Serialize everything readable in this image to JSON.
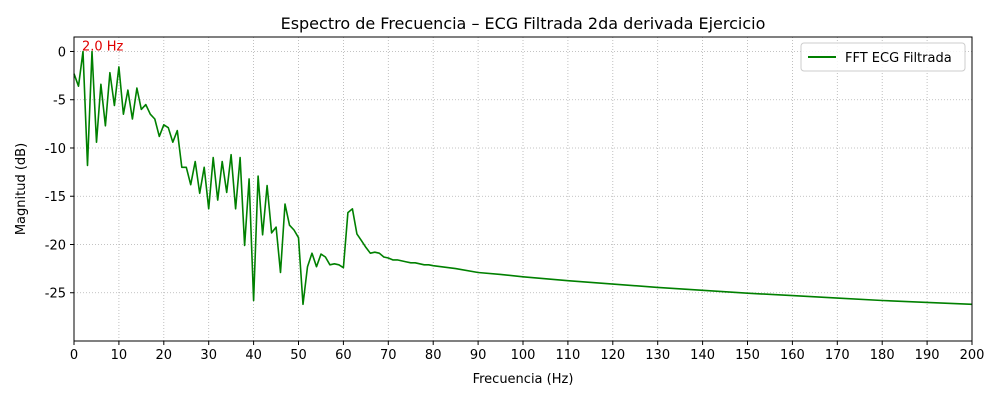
{
  "chart_data": {
    "type": "line",
    "title": "Espectro de Frecuencia – ECG Filtrada 2da derivada Ejercicio",
    "xlabel": "Frecuencia (Hz)",
    "ylabel": "Magnitud (dB)",
    "xlim": [
      0,
      200
    ],
    "ylim": [
      -30,
      1.5
    ],
    "xticks": [
      0,
      10,
      20,
      30,
      40,
      50,
      60,
      70,
      80,
      90,
      100,
      110,
      120,
      130,
      140,
      150,
      160,
      170,
      180,
      190,
      200
    ],
    "yticks": [
      0,
      -5,
      -10,
      -15,
      -20,
      -25
    ],
    "grid": true,
    "legend_position": "top-right",
    "annotation": {
      "text": "2.0 Hz",
      "x": 2.0,
      "y": 0,
      "color": "#e00000"
    },
    "series": [
      {
        "name": "FFT ECG Filtrada",
        "color": "#008000",
        "x": [
          0,
          1,
          2,
          3,
          4,
          5,
          6,
          7,
          8,
          9,
          10,
          11,
          12,
          13,
          14,
          15,
          16,
          17,
          18,
          19,
          20,
          21,
          22,
          23,
          24,
          25,
          26,
          27,
          28,
          29,
          30,
          31,
          32,
          33,
          34,
          35,
          36,
          37,
          38,
          39,
          40,
          41,
          42,
          43,
          44,
          45,
          46,
          47,
          48,
          49,
          50,
          51,
          52,
          53,
          54,
          55,
          56,
          57,
          58,
          59,
          60,
          61,
          62,
          63,
          64,
          65,
          66,
          67,
          68,
          69,
          70,
          71,
          72,
          73,
          74,
          75,
          76,
          77,
          78,
          79,
          80,
          85,
          90,
          95,
          100,
          110,
          120,
          130,
          140,
          150,
          160,
          170,
          180,
          190,
          200
        ],
        "y": [
          -2.3,
          -3.6,
          0,
          -11.8,
          0,
          -9.4,
          -3.4,
          -7.7,
          -2.2,
          -5.6,
          -1.6,
          -6.5,
          -4.0,
          -7.0,
          -3.8,
          -6.0,
          -5.5,
          -6.5,
          -7.0,
          -8.8,
          -7.6,
          -7.9,
          -9.4,
          -8.2,
          -12.0,
          -12.0,
          -13.8,
          -11.4,
          -14.7,
          -12.0,
          -16.3,
          -11.0,
          -15.4,
          -11.4,
          -14.6,
          -10.7,
          -16.3,
          -11.0,
          -20.1,
          -13.2,
          -25.8,
          -12.9,
          -19.0,
          -13.9,
          -18.8,
          -18.2,
          -22.9,
          -15.8,
          -18.0,
          -18.5,
          -19.3,
          -26.2,
          -22.3,
          -20.9,
          -22.3,
          -21.0,
          -21.3,
          -22.1,
          -22.0,
          -22.1,
          -22.4,
          -16.7,
          -16.3,
          -18.9,
          -19.6,
          -20.3,
          -20.9,
          -20.8,
          -20.9,
          -21.3,
          -21.4,
          -21.6,
          -21.6,
          -21.7,
          -21.8,
          -21.9,
          -21.9,
          -22.0,
          -22.1,
          -22.1,
          -22.2,
          -22.5,
          -22.9,
          -23.1,
          -23.35,
          -23.75,
          -24.1,
          -24.45,
          -24.75,
          -25.05,
          -25.3,
          -25.55,
          -25.8,
          -26.0,
          -26.2
        ]
      }
    ]
  }
}
